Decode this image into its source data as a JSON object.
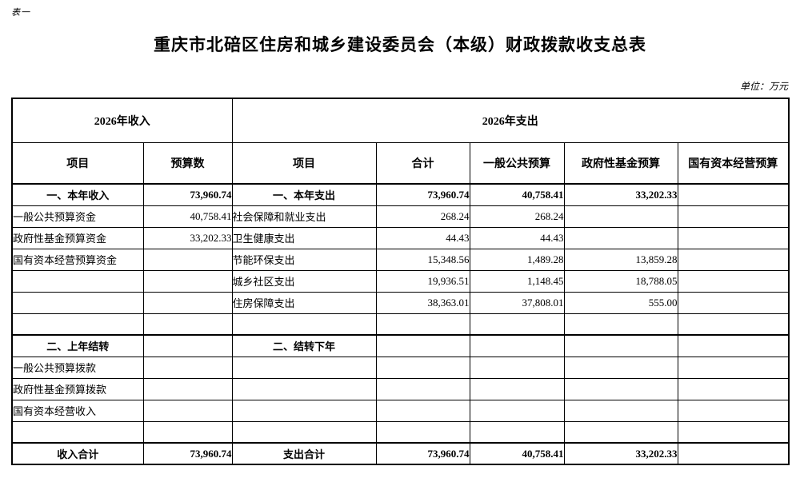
{
  "page": {
    "table_label": "表一",
    "title": "重庆市北碚区住房和城乡建设委员会（本级）财政拨款收支总表",
    "unit_note": "单位：万元"
  },
  "table": {
    "header": {
      "income_group": "2026年收入",
      "expense_group": "2026年支出",
      "columns": [
        "项目",
        "预算数",
        "项目",
        "合计",
        "一般公共预算",
        "政府性基金预算",
        "国有资本经营预算"
      ]
    },
    "rows": [
      {
        "bold": true,
        "cells": [
          "一、本年收入",
          "73,960.74",
          "一、本年支出",
          "73,960.74",
          "40,758.41",
          "33,202.33",
          ""
        ]
      },
      {
        "bold": false,
        "cells": [
          "一般公共预算资金",
          "40,758.41",
          "社会保障和就业支出",
          "268.24",
          "268.24",
          "",
          ""
        ]
      },
      {
        "bold": false,
        "cells": [
          "政府性基金预算资金",
          "33,202.33",
          "卫生健康支出",
          "44.43",
          "44.43",
          "",
          ""
        ]
      },
      {
        "bold": false,
        "cells": [
          "国有资本经营预算资金",
          "",
          "节能环保支出",
          "15,348.56",
          "1,489.28",
          "13,859.28",
          ""
        ]
      },
      {
        "bold": false,
        "cells": [
          "",
          "",
          "城乡社区支出",
          "19,936.51",
          "1,148.45",
          "18,788.05",
          ""
        ]
      },
      {
        "bold": false,
        "cells": [
          "",
          "",
          "住房保障支出",
          "38,363.01",
          "37,808.01",
          "555.00",
          ""
        ]
      },
      {
        "bold": false,
        "cells": [
          "",
          "",
          "",
          "",
          "",
          "",
          ""
        ]
      },
      {
        "bold": true,
        "cells": [
          "二、上年结转",
          "",
          "二、结转下年",
          "",
          "",
          "",
          ""
        ]
      },
      {
        "bold": false,
        "cells": [
          "一般公共预算拨款",
          "",
          "",
          "",
          "",
          "",
          ""
        ]
      },
      {
        "bold": false,
        "cells": [
          "政府性基金预算拨款",
          "",
          "",
          "",
          "",
          "",
          ""
        ]
      },
      {
        "bold": false,
        "cells": [
          "国有资本经营收入",
          "",
          "",
          "",
          "",
          "",
          ""
        ]
      },
      {
        "bold": false,
        "cells": [
          "",
          "",
          "",
          "",
          "",
          "",
          ""
        ]
      },
      {
        "bold": true,
        "cells": [
          "收入合计",
          "73,960.74",
          "支出合计",
          "73,960.74",
          "40,758.41",
          "33,202.33",
          ""
        ]
      }
    ]
  }
}
